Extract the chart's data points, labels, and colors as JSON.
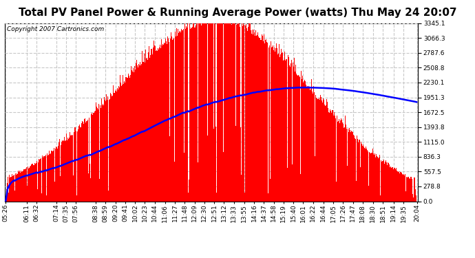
{
  "title": "Total PV Panel Power & Running Average Power (watts) Thu May 24 20:07",
  "copyright": "Copyright 2007 Cartronics.com",
  "background_color": "#ffffff",
  "plot_bg_color": "#ffffff",
  "grid_color": "#c8c8c8",
  "bar_color": "#ff0000",
  "line_color": "#0000ff",
  "y_tick_labels": [
    "0.0",
    "278.8",
    "557.5",
    "836.3",
    "1115.0",
    "1393.8",
    "1672.5",
    "1951.3",
    "2230.1",
    "2508.8",
    "2787.6",
    "3066.3",
    "3345.1"
  ],
  "y_tick_values": [
    0.0,
    278.8,
    557.5,
    836.3,
    1115.0,
    1393.8,
    1672.5,
    1951.3,
    2230.1,
    2508.8,
    2787.6,
    3066.3,
    3345.1
  ],
  "x_tick_labels": [
    "05:26",
    "06:11",
    "06:32",
    "07:14",
    "07:35",
    "07:56",
    "08:38",
    "08:59",
    "09:20",
    "09:41",
    "10:02",
    "10:23",
    "10:44",
    "11:06",
    "11:27",
    "11:48",
    "12:09",
    "12:30",
    "12:51",
    "13:12",
    "13:33",
    "13:55",
    "14:16",
    "14:37",
    "14:58",
    "15:19",
    "15:40",
    "16:01",
    "16:22",
    "16:44",
    "17:05",
    "17:26",
    "17:47",
    "18:08",
    "18:30",
    "18:51",
    "19:14",
    "19:35",
    "20:04"
  ],
  "ylim": [
    0.0,
    3345.1
  ],
  "title_fontsize": 11,
  "axis_fontsize": 6.5,
  "copyright_fontsize": 6.5
}
